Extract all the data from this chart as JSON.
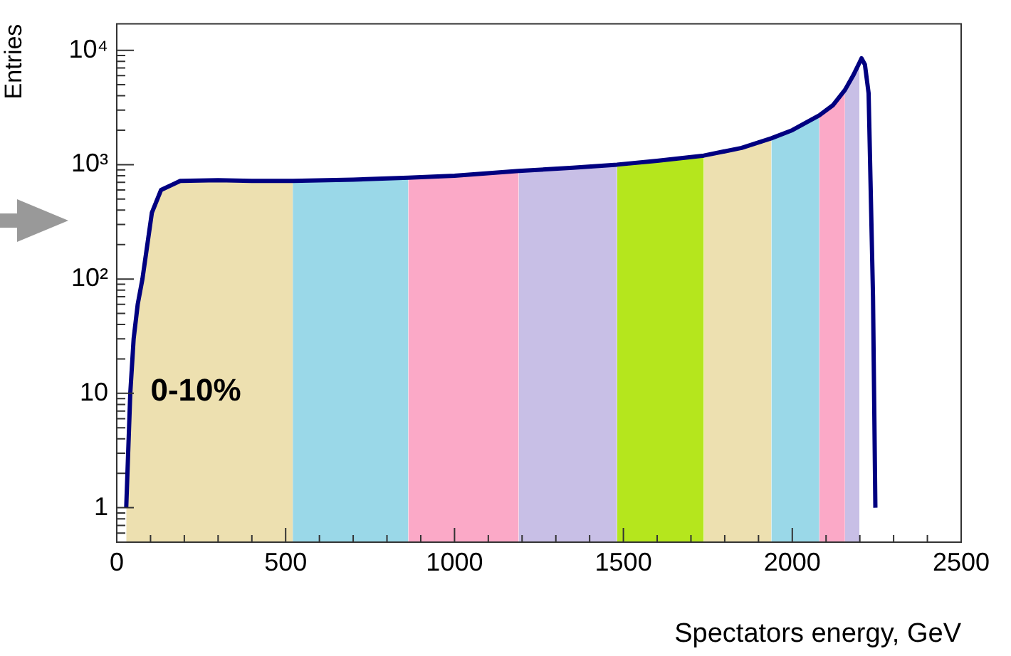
{
  "chart_data": {
    "type": "area",
    "xlabel": "Spectators energy, GeV",
    "ylabel": "Entries",
    "series": [
      {
        "color": "#ede0b0",
        "x": [
          28,
          40,
          50,
          62,
          76,
          104,
          131,
          188,
          300,
          400,
          521
        ],
        "values": [
          1,
          10,
          30,
          60,
          100,
          380,
          600,
          720,
          730,
          720,
          720
        ]
      },
      {
        "color": "#9ad8e8",
        "x": [
          521,
          700,
          863
        ],
        "values": [
          720,
          740,
          770
        ]
      },
      {
        "color": "#fba9c7",
        "x": [
          863,
          1000,
          1190
        ],
        "values": [
          770,
          800,
          880
        ]
      },
      {
        "color": "#c8bfe6",
        "x": [
          1190,
          1350,
          1481
        ],
        "values": [
          880,
          940,
          1000
        ]
      },
      {
        "color": "#b5e61d",
        "x": [
          1481,
          1600,
          1738
        ],
        "values": [
          1000,
          1080,
          1200
        ]
      },
      {
        "color": "#ede0b0",
        "x": [
          1738,
          1850,
          1938
        ],
        "values": [
          1200,
          1400,
          1700
        ]
      },
      {
        "color": "#9ad8e8",
        "x": [
          1938,
          2000,
          2080
        ],
        "values": [
          1700,
          2000,
          2700
        ]
      },
      {
        "color": "#fba9c7",
        "x": [
          2080,
          2120,
          2156
        ],
        "values": [
          2700,
          3300,
          4500
        ]
      },
      {
        "color": "#c8bfe6",
        "x": [
          2156,
          2180,
          2199
        ],
        "values": [
          4500,
          6000,
          7800
        ]
      },
      {
        "type": "line",
        "color": "#000080",
        "x": [
          28,
          40,
          50,
          62,
          76,
          104,
          131,
          188,
          300,
          400,
          521,
          700,
          863,
          1000,
          1190,
          1350,
          1481,
          1600,
          1738,
          1850,
          1938,
          2000,
          2080,
          2120,
          2156,
          2180,
          2199,
          2205,
          2215,
          2226,
          2239,
          2246
        ],
        "values": [
          1,
          10,
          30,
          60,
          100,
          380,
          600,
          720,
          730,
          720,
          720,
          740,
          770,
          800,
          880,
          940,
          1000,
          1080,
          1200,
          1400,
          1700,
          2000,
          2700,
          3300,
          4500,
          6000,
          7800,
          8500,
          7500,
          4200,
          70,
          1
        ]
      }
    ],
    "log": "y",
    "xlim": [
      0,
      2500
    ],
    "ylim": [
      0.5,
      17000
    ],
    "xticks": [
      0,
      {
        "value": 100,
        "label": null
      },
      {
        "value": 200,
        "label": null
      },
      {
        "value": 300,
        "label": null
      },
      {
        "value": 400,
        "label": null
      },
      500,
      {
        "value": 600,
        "label": null
      },
      {
        "value": 700,
        "label": null
      },
      {
        "value": 800,
        "label": null
      },
      {
        "value": 900,
        "label": null
      },
      1000,
      {
        "value": 1100,
        "label": null
      },
      {
        "value": 1200,
        "label": null
      },
      {
        "value": 1300,
        "label": null
      },
      {
        "value": 1400,
        "label": null
      },
      1500,
      {
        "value": 1600,
        "label": null
      },
      {
        "value": 1700,
        "label": null
      },
      {
        "value": 1800,
        "label": null
      },
      {
        "value": 1900,
        "label": null
      },
      2000,
      {
        "value": 2100,
        "label": null
      },
      {
        "value": 2200,
        "label": null
      },
      {
        "value": 2300,
        "label": null
      },
      {
        "value": 2400,
        "label": null
      },
      2500
    ],
    "yticks": [
      {
        "value": 0.6,
        "label": null
      },
      {
        "value": 0.7,
        "label": null
      },
      {
        "value": 0.8,
        "label": null
      },
      {
        "value": 0.9,
        "label": null
      },
      1,
      {
        "value": 2,
        "label": null
      },
      {
        "value": 3,
        "label": null
      },
      {
        "value": 4,
        "label": null
      },
      {
        "value": 5,
        "label": null
      },
      {
        "value": 6,
        "label": null
      },
      {
        "value": 7,
        "label": null
      },
      {
        "value": 8,
        "label": null
      },
      {
        "value": 9,
        "label": null
      },
      10,
      {
        "value": 20,
        "label": null
      },
      {
        "value": 30,
        "label": null
      },
      {
        "value": 40,
        "label": null
      },
      {
        "value": 50,
        "label": null
      },
      {
        "value": 60,
        "label": null
      },
      {
        "value": 70,
        "label": null
      },
      {
        "value": 80,
        "label": null
      },
      {
        "value": 90,
        "label": null
      },
      {
        "value": 100,
        "label": "10²"
      },
      {
        "value": 200,
        "label": null
      },
      {
        "value": 300,
        "label": null
      },
      {
        "value": 400,
        "label": null
      },
      {
        "value": 500,
        "label": null
      },
      {
        "value": 600,
        "label": null
      },
      {
        "value": 700,
        "label": null
      },
      {
        "value": 800,
        "label": null
      },
      {
        "value": 900,
        "label": null
      },
      {
        "value": 1000,
        "label": "10³"
      },
      {
        "value": 2000,
        "label": null
      },
      {
        "value": 3000,
        "label": null
      },
      {
        "value": 4000,
        "label": null
      },
      {
        "value": 5000,
        "label": null
      },
      {
        "value": 6000,
        "label": null
      },
      {
        "value": 7000,
        "label": null
      },
      {
        "value": 8000,
        "label": null
      },
      {
        "value": 9000,
        "label": null
      },
      {
        "value": 10000,
        "label": "10⁴"
      }
    ],
    "annotations": [
      "0-10%"
    ]
  }
}
